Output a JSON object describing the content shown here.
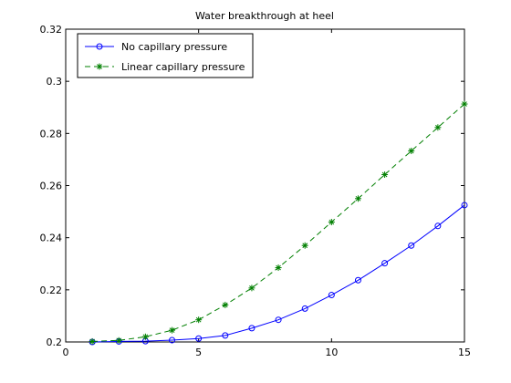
{
  "chart_data": {
    "type": "line",
    "title": "Water breakthrough at heel",
    "xlabel": "",
    "ylabel": "",
    "xlim": [
      0,
      15
    ],
    "ylim": [
      0.2,
      0.32
    ],
    "xticks": [
      0,
      5,
      10,
      15
    ],
    "yticks": [
      0.2,
      0.22,
      0.24,
      0.26,
      0.28,
      0.3,
      0.32
    ],
    "xtick_labels": [
      "0",
      "5",
      "10",
      "15"
    ],
    "ytick_labels": [
      "0.2",
      "0.22",
      "0.24",
      "0.26",
      "0.28",
      "0.3",
      "0.32"
    ],
    "grid": false,
    "legend_position": "top-left",
    "x": [
      1,
      2,
      3,
      4,
      5,
      6,
      7,
      8,
      9,
      10,
      11,
      12,
      13,
      14,
      15
    ],
    "series": [
      {
        "name": "No capillary pressure",
        "color": "#0000ff",
        "line_style": "solid",
        "marker": "circle",
        "values": [
          0.2,
          0.2002,
          0.2003,
          0.2007,
          0.2013,
          0.2025,
          0.2053,
          0.2085,
          0.2128,
          0.218,
          0.2237,
          0.2302,
          0.237,
          0.2445,
          0.2525
        ]
      },
      {
        "name": "Linear capillary pressure",
        "color": "#007f00",
        "line_style": "dashed",
        "marker": "asterisk",
        "values": [
          0.2002,
          0.2006,
          0.202,
          0.2045,
          0.2085,
          0.2142,
          0.2207,
          0.2285,
          0.237,
          0.246,
          0.255,
          0.2642,
          0.2733,
          0.2823,
          0.2913
        ]
      }
    ]
  }
}
